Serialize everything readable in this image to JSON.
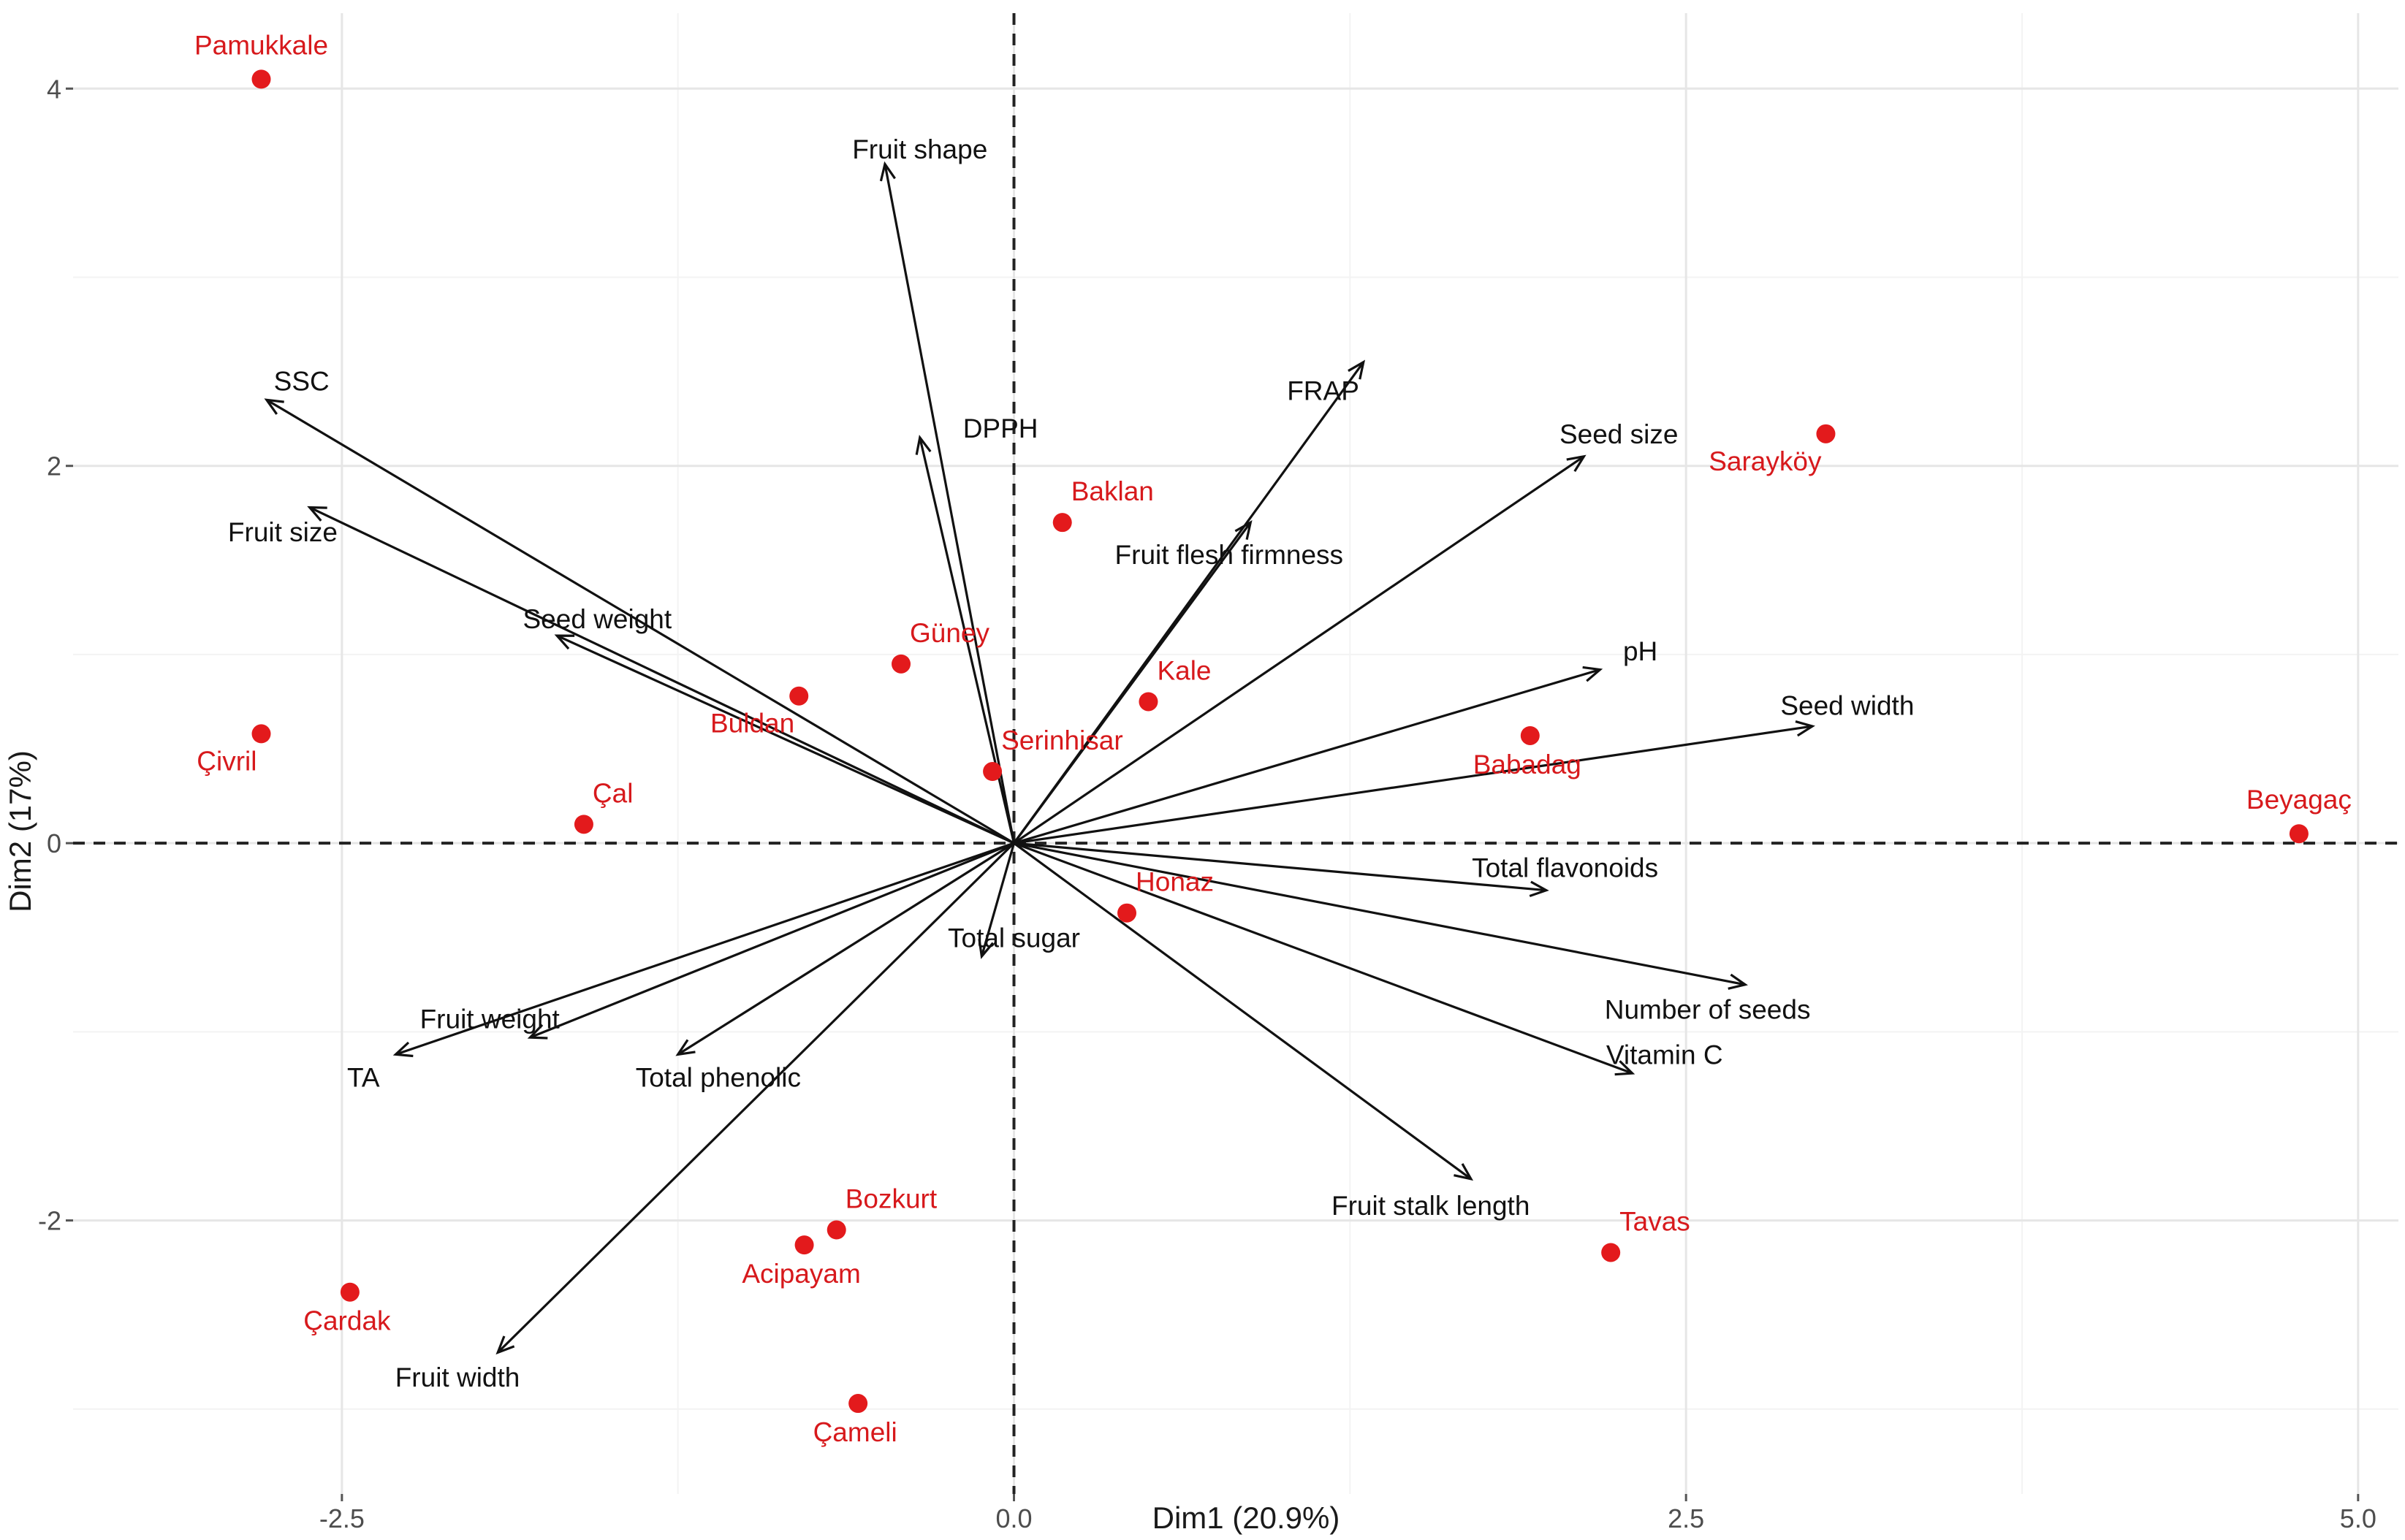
{
  "colors": {
    "point": "#e31a1c",
    "point_label": "#d7191c",
    "arrow": "#111111",
    "grid_major": "#e6e6e6",
    "grid_minor": "#f3f3f3",
    "refline": "#222222"
  },
  "chart_data": {
    "type": "scatter",
    "subtype": "pca-biplot",
    "xlabel": "Dim1 (20.9%)",
    "ylabel": "Dim2 (17%)",
    "xlim": [
      -3.5,
      5.15
    ],
    "ylim": [
      -3.45,
      4.4
    ],
    "x_ticks": [
      -2.5,
      0.0,
      2.5,
      5.0
    ],
    "x_tick_labels": [
      "-2.5",
      "0.0",
      "2.5",
      "5.0"
    ],
    "y_ticks": [
      -2,
      0,
      2,
      4
    ],
    "y_tick_labels": [
      "-2",
      "0",
      "2",
      "4"
    ],
    "grid": true,
    "reference_lines": {
      "x": 0,
      "y": 0
    },
    "points": [
      {
        "label": "Pamukkale",
        "x": -2.8,
        "y": 4.05,
        "label_pos": "above"
      },
      {
        "label": "Sarayköy",
        "x": 3.02,
        "y": 2.17,
        "label_pos": "below-left"
      },
      {
        "label": "Baklan",
        "x": 0.18,
        "y": 1.7,
        "label_pos": "above-right"
      },
      {
        "label": "Güney",
        "x": -0.42,
        "y": 0.95,
        "label_pos": "above-right"
      },
      {
        "label": "Kale",
        "x": 0.5,
        "y": 0.75,
        "label_pos": "above-right"
      },
      {
        "label": "Buldan",
        "x": -0.8,
        "y": 0.78,
        "label_pos": "below-left"
      },
      {
        "label": "Serinhisar",
        "x": -0.08,
        "y": 0.38,
        "label_pos": "above-right"
      },
      {
        "label": "Babadag",
        "x": 1.92,
        "y": 0.57,
        "label_pos": "below"
      },
      {
        "label": "Çivril",
        "x": -2.8,
        "y": 0.58,
        "label_pos": "below-left"
      },
      {
        "label": "Çal",
        "x": -1.6,
        "y": 0.1,
        "label_pos": "above-right"
      },
      {
        "label": "Beyagaç",
        "x": 4.78,
        "y": 0.05,
        "label_pos": "above"
      },
      {
        "label": "Honaz",
        "x": 0.42,
        "y": -0.37,
        "label_pos": "above-right"
      },
      {
        "label": "Bozkurt",
        "x": -0.66,
        "y": -2.05,
        "label_pos": "above-right"
      },
      {
        "label": "Acipayam",
        "x": -0.78,
        "y": -2.13,
        "label_pos": "below"
      },
      {
        "label": "Tavas",
        "x": 2.22,
        "y": -2.17,
        "label_pos": "above-right"
      },
      {
        "label": "Çardak",
        "x": -2.47,
        "y": -2.38,
        "label_pos": "below"
      },
      {
        "label": "Çameli",
        "x": -0.58,
        "y": -2.97,
        "label_pos": "below"
      }
    ],
    "vectors": [
      {
        "label": "Fruit shape",
        "x": -0.48,
        "y": 3.6,
        "label_x": -0.35,
        "label_y": 3.68
      },
      {
        "label": "SSC",
        "x": -2.78,
        "y": 2.35,
        "label_x": -2.65,
        "label_y": 2.45
      },
      {
        "label": "DPPH",
        "x": -0.35,
        "y": 2.15,
        "label_x": -0.05,
        "label_y": 2.2
      },
      {
        "label": "FRAP",
        "x": 1.3,
        "y": 2.55,
        "label_x": 1.15,
        "label_y": 2.4
      },
      {
        "label": "Seed size",
        "x": 2.12,
        "y": 2.05,
        "label_x": 2.25,
        "label_y": 2.17
      },
      {
        "label": "Fruit size",
        "x": -2.62,
        "y": 1.78,
        "label_x": -2.72,
        "label_y": 1.65
      },
      {
        "label": "Fruit flesh firmness",
        "x": 0.88,
        "y": 1.7,
        "label_x": 0.8,
        "label_y": 1.53
      },
      {
        "label": "Seed weight",
        "x": -1.7,
        "y": 1.1,
        "label_x": -1.55,
        "label_y": 1.19
      },
      {
        "label": "pH",
        "x": 2.18,
        "y": 0.92,
        "label_x": 2.33,
        "label_y": 1.02
      },
      {
        "label": "Seed width",
        "x": 2.97,
        "y": 0.62,
        "label_x": 3.1,
        "label_y": 0.73
      },
      {
        "label": "Total flavonoids",
        "x": 1.98,
        "y": -0.25,
        "label_x": 2.05,
        "label_y": -0.13
      },
      {
        "label": "Number of seeds",
        "x": 2.72,
        "y": -0.75,
        "label_x": 2.58,
        "label_y": -0.88
      },
      {
        "label": "Vitamin C",
        "x": 2.3,
        "y": -1.22,
        "label_x": 2.42,
        "label_y": -1.12
      },
      {
        "label": "Fruit stalk length",
        "x": 1.7,
        "y": -1.78,
        "label_x": 1.55,
        "label_y": -1.92
      },
      {
        "label": "Total sugar",
        "x": -0.12,
        "y": -0.6,
        "label_x": 0.0,
        "label_y": -0.5
      },
      {
        "label": "Fruit weight",
        "x": -1.8,
        "y": -1.03,
        "label_x": -1.95,
        "label_y": -0.93
      },
      {
        "label": "TA",
        "x": -2.3,
        "y": -1.12,
        "label_x": -2.42,
        "label_y": -1.24
      },
      {
        "label": "Total phenolic",
        "x": -1.25,
        "y": -1.12,
        "label_x": -1.1,
        "label_y": -1.24
      },
      {
        "label": "Fruit width",
        "x": -1.92,
        "y": -2.7,
        "label_x": -2.07,
        "label_y": -2.83
      }
    ]
  }
}
